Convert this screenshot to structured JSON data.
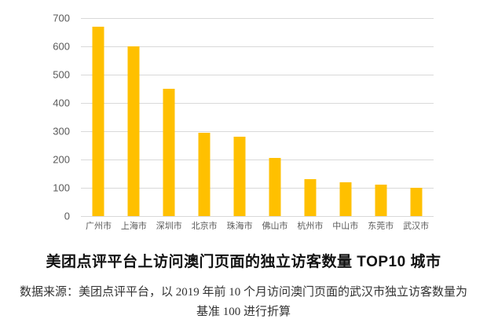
{
  "chart_data": {
    "type": "bar",
    "title": "美团点评平台上访问澳门页面的独立访客数量 TOP10 城市",
    "source_note": "数据来源：美团点评平台，以 2019 年前 10 个月访问澳门页面的武汉市独立访客数量为基准 100 进行折算",
    "categories": [
      "广州市",
      "上海市",
      "深圳市",
      "北京市",
      "珠海市",
      "佛山市",
      "杭州市",
      "中山市",
      "东莞市",
      "武汉市"
    ],
    "values": [
      670,
      600,
      450,
      295,
      280,
      205,
      130,
      120,
      110,
      100
    ],
    "xlabel": "",
    "ylabel": "",
    "ylim": [
      0,
      700
    ],
    "yticks": [
      0,
      100,
      200,
      300,
      400,
      500,
      600,
      700
    ],
    "grid": true,
    "legend": "none",
    "bar_color": "#ffc000",
    "gridline_color": "#d9d9d9",
    "tick_label_color": "#595959",
    "title_color": "#111111",
    "source_text_color": "#333333"
  }
}
